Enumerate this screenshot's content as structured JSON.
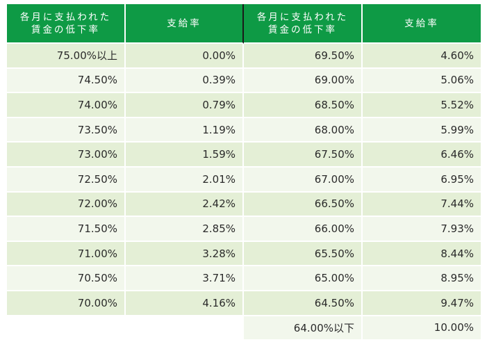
{
  "table": {
    "headers": [
      "各月に支払われた\n賃金の低下率",
      "支給率",
      "各月に支払われた\n賃金の低下率",
      "支給率"
    ],
    "rows": [
      {
        "left_rate": "75.00%以上",
        "left_pay": "0.00%",
        "right_rate": "69.50%",
        "right_pay": "4.60%"
      },
      {
        "left_rate": "74.50%",
        "left_pay": "0.39%",
        "right_rate": "69.00%",
        "right_pay": "5.06%"
      },
      {
        "left_rate": "74.00%",
        "left_pay": "0.79%",
        "right_rate": "68.50%",
        "right_pay": "5.52%"
      },
      {
        "left_rate": "73.50%",
        "left_pay": "1.19%",
        "right_rate": "68.00%",
        "right_pay": "5.99%"
      },
      {
        "left_rate": "73.00%",
        "left_pay": "1.59%",
        "right_rate": "67.50%",
        "right_pay": "6.46%"
      },
      {
        "left_rate": "72.50%",
        "left_pay": "2.01%",
        "right_rate": "67.00%",
        "right_pay": "6.95%"
      },
      {
        "left_rate": "72.00%",
        "left_pay": "2.42%",
        "right_rate": "66.50%",
        "right_pay": "7.44%"
      },
      {
        "left_rate": "71.50%",
        "left_pay": "2.85%",
        "right_rate": "66.00%",
        "right_pay": "7.93%"
      },
      {
        "left_rate": "71.00%",
        "left_pay": "3.28%",
        "right_rate": "65.50%",
        "right_pay": "8.44%"
      },
      {
        "left_rate": "70.50%",
        "left_pay": "3.71%",
        "right_rate": "65.00%",
        "right_pay": "8.95%"
      },
      {
        "left_rate": "70.00%",
        "left_pay": "4.16%",
        "right_rate": "64.50%",
        "right_pay": "9.47%"
      },
      {
        "left_rate": "",
        "left_pay": "",
        "right_rate": "64.00%以下",
        "right_pay": "10.00%"
      }
    ]
  },
  "colors": {
    "header_bg": "#0e9a45",
    "header_text": "#ffffff",
    "row_odd_bg": "#e4efd6",
    "row_even_bg": "#f2f7ec",
    "text": "#2a2a2a"
  }
}
